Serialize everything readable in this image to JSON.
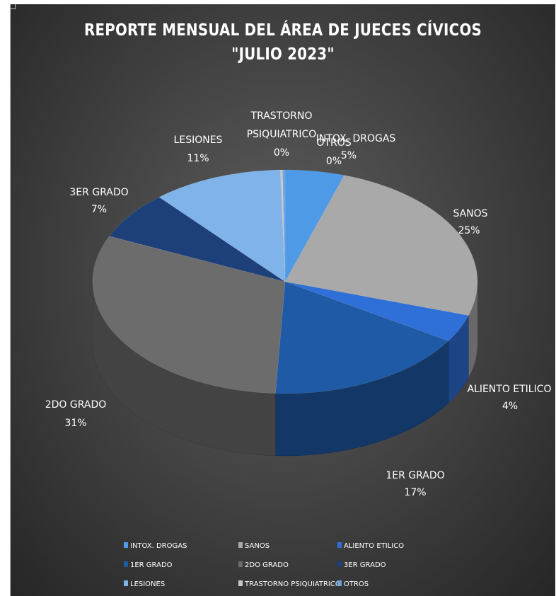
{
  "chart_data": {
    "type": "pie",
    "title": "REPORTE MENSUAL DEL ÁREA DE JUECES CÍVICOS",
    "subtitle": "\"JULIO 2023\"",
    "three_d": true,
    "legend_position": "bottom",
    "slices": [
      {
        "label": "INTOX. DROGAS",
        "legend": "INTOX. DROGAS",
        "percent_label": "5%",
        "value": 5,
        "color": "#4f9ae6"
      },
      {
        "label": "SANOS",
        "legend": "SANOS",
        "percent_label": "25%",
        "value": 25,
        "color": "#a9a9a9"
      },
      {
        "label": "ALIENTO ETILICO",
        "legend": "ALIENTO ETILICO",
        "percent_label": "4%",
        "value": 4,
        "color": "#2f6fd8"
      },
      {
        "label": "1ER GRADO",
        "legend": "1ER GRADO",
        "percent_label": "17%",
        "value": 17,
        "color": "#1f5aa6"
      },
      {
        "label": "2DO GRADO",
        "legend": "2DO GRADO",
        "percent_label": "31%",
        "value": 31,
        "color": "#6c6c6c"
      },
      {
        "label": "3ER GRADO",
        "legend": "3ER GRADO",
        "percent_label": "7%",
        "value": 7,
        "color": "#1d3f7a"
      },
      {
        "label": "LESIONES",
        "legend": "LESIONES",
        "percent_label": "11%",
        "value": 11,
        "color": "#7fb3ea"
      },
      {
        "label": "TRASTORNO PSIQUIATRICO",
        "legend": "TRASTORNO PSIQUIATRICO",
        "percent_label": "0%",
        "value": 0.2,
        "color": "#c8c8c8"
      },
      {
        "label": "OTROS",
        "legend": "OTROS",
        "percent_label": "0%",
        "value": 0.2,
        "color": "#6aa3df"
      }
    ]
  }
}
